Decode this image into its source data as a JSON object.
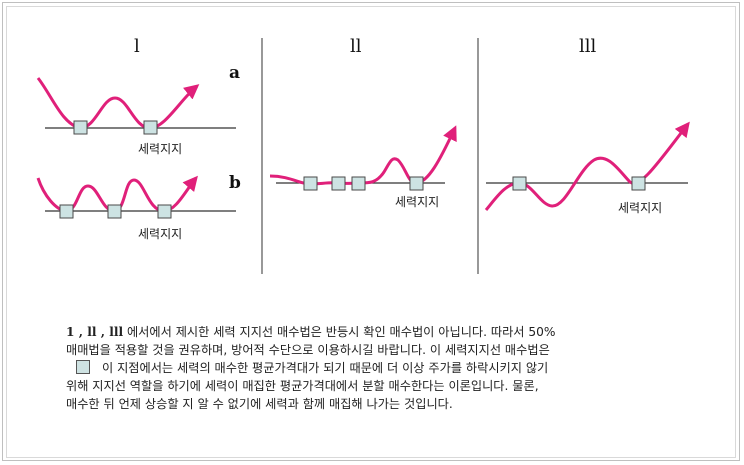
{
  "colors": {
    "curve": "#e0207a",
    "support_box_fill": "#cde3e3",
    "support_box_stroke": "#4a4a4a",
    "line": "#333333",
    "divider": "#555555"
  },
  "panels": {
    "panel1": {
      "title": "l",
      "sub_a_label": "a",
      "sub_b_label": "b",
      "support_label_a": "세력지지",
      "support_label_b": "세력지지"
    },
    "panel2": {
      "title": "ll",
      "support_label": "세력지지"
    },
    "panel3": {
      "title": "lll",
      "support_label": "세력지지"
    }
  },
  "caption": {
    "line1_prefix": "1 , ll , lll",
    "line1_rest": " 에서에서 제시한 세력 지지선 매수법은 반등시 확인 매수법이 아닙니다. 따라서 50%",
    "line2": "매매법을 적용할 것을 권유하며, 방어적 수단으로 이용하시길 바랍니다. 이 세력지지선 매수법은",
    "line3": "이 지점에서는 세력의 매수한 평균가격대가 되기 때문에 더 이상 주가를 하락시키지 않기",
    "line4": "위해 지지선 역할을 하기에 세력이 매집한 평균가격대에서 분할 매수한다는 이론입니다. 물론,",
    "line5": "매수한 뒤 언제 상승할 지 알 수 없기에 세력과 함께 매집해 나가는 것입니다."
  }
}
